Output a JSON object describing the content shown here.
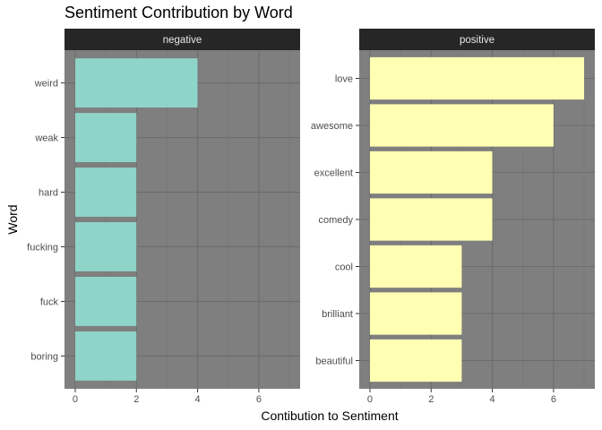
{
  "chart_data": {
    "type": "bar",
    "orientation": "horizontal",
    "title": "Sentiment Contribution by Word",
    "xlabel": "Contibution to Sentiment",
    "ylabel": "Word",
    "xticks": [
      0,
      2,
      4,
      6
    ],
    "xlim": [
      -0.35,
      7.35
    ],
    "grid": true,
    "legend": "none",
    "panel_background": "#7f7f7f",
    "strip_background": "#262626",
    "panels": [
      {
        "label": "negative",
        "color": "#8fd4c8",
        "categories": [
          "weird",
          "weak",
          "hard",
          "fucking",
          "fuck",
          "boring"
        ],
        "values": [
          4,
          2,
          2,
          2,
          2,
          2
        ]
      },
      {
        "label": "positive",
        "color": "#ffffb3",
        "categories": [
          "love",
          "awesome",
          "excellent",
          "comedy",
          "cool",
          "brilliant",
          "beautiful"
        ],
        "values": [
          7,
          6,
          4,
          4,
          3,
          3,
          3
        ]
      }
    ]
  }
}
